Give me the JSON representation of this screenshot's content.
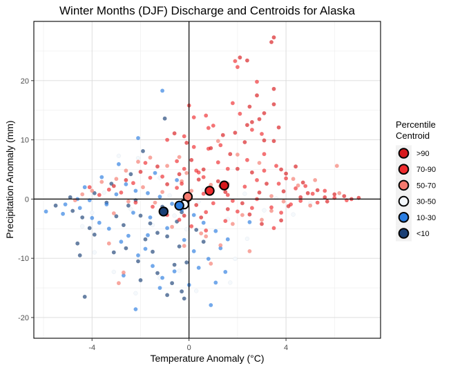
{
  "chart_data": {
    "type": "scatter",
    "title": "Winter Months (DJF) Discharge and Centroids for Alaska",
    "xlabel": "Temperature Anomaly (°C)",
    "ylabel": "Precipitation Anomaly (mm)",
    "xlim": [
      -6.4,
      7.9
    ],
    "ylim": [
      -23.5,
      30
    ],
    "xticks": [
      -4,
      0,
      4
    ],
    "xtick_labels": [
      "-4",
      "0",
      "4"
    ],
    "yticks": [
      -20,
      -10,
      0,
      10,
      20
    ],
    "ytick_labels": [
      "-20",
      "-10",
      "0",
      "10",
      "20"
    ],
    "grid": true,
    "reference_lines": {
      "x": 0,
      "y": 0
    },
    "legend": {
      "title_lines": [
        "Percentile",
        "Centroid"
      ],
      "placement": "right",
      "entries": [
        {
          "label": ">90",
          "color": "#d7191c"
        },
        {
          "label": "70-90",
          "color": "#ef2b2d"
        },
        {
          "label": "50-70",
          "color": "#f4796e"
        },
        {
          "label": "30-50",
          "color": "#f4f8fc"
        },
        {
          "label": "10-30",
          "color": "#2a7de1"
        },
        {
          "label": "<10",
          "color": "#1a3f75"
        }
      ]
    },
    "centroids": [
      {
        "series": ">90",
        "x": 1.45,
        "y": 2.3
      },
      {
        "series": "70-90",
        "x": 0.85,
        "y": 1.4
      },
      {
        "series": "50-70",
        "x": -0.05,
        "y": 0.4
      },
      {
        "series": "30-50",
        "x": -0.2,
        "y": -0.9
      },
      {
        "series": "10-30",
        "x": -0.4,
        "y": -1.1
      },
      {
        "series": "<10",
        "x": -1.05,
        "y": -2.1
      }
    ],
    "series": [
      {
        "name": ">90",
        "points": [
          [
            3.4,
            26.5
          ],
          [
            3.5,
            27.3
          ],
          [
            2.1,
            23.9
          ],
          [
            2.4,
            23.4
          ],
          [
            2.8,
            17.5
          ],
          [
            3.5,
            18.6
          ],
          [
            3.5,
            16.0
          ],
          [
            2.5,
            15.6
          ],
          [
            3.1,
            14.5
          ],
          [
            2.9,
            13.5
          ],
          [
            2.6,
            13.0
          ],
          [
            3.7,
            12.1
          ],
          [
            2.4,
            12.5
          ],
          [
            3.5,
            9.8
          ],
          [
            1.9,
            11.2
          ],
          [
            1.4,
            10.8
          ],
          [
            2.3,
            9.6
          ],
          [
            3.1,
            9.9
          ],
          [
            4.4,
            5.5
          ],
          [
            3.8,
            5.0
          ],
          [
            4.7,
            2.8
          ],
          [
            5.3,
            1.5
          ],
          [
            6.0,
            0.8
          ],
          [
            6.4,
            0.5
          ],
          [
            7.0,
            0.2
          ],
          [
            5.7,
            -0.4
          ],
          [
            3.2,
            2.6
          ],
          [
            2.5,
            -2.6
          ],
          [
            3.0,
            -4.2
          ],
          [
            3.8,
            -3.6
          ],
          [
            4.1,
            -1.2
          ],
          [
            4.6,
            0.3
          ],
          [
            1.7,
            7.6
          ],
          [
            2.0,
            5.1
          ],
          [
            0.9,
            8.6
          ],
          [
            0.6,
            5.0
          ],
          [
            1.2,
            3.0
          ],
          [
            0.4,
            3.3
          ],
          [
            -0.1,
            9.5
          ],
          [
            0.1,
            6.6
          ],
          [
            -0.6,
            11.1
          ],
          [
            -0.4,
            4.2
          ],
          [
            -0.9,
            2.5
          ],
          [
            -1.3,
            5.5
          ],
          [
            -2.0,
            4.6
          ],
          [
            -2.6,
            3.2
          ],
          [
            -3.1,
            2.2
          ],
          [
            -0.2,
            -2.8
          ],
          [
            0.5,
            -3.1
          ],
          [
            1.6,
            -1.7
          ],
          [
            2.9,
            1.1
          ],
          [
            3.9,
            1.3
          ],
          [
            4.9,
            1.0
          ],
          [
            5.6,
            0.3
          ],
          [
            6.7,
            0.0
          ],
          [
            1.5,
            1.2
          ],
          [
            0.3,
            -1.0
          ],
          [
            2.2,
            -0.7
          ],
          [
            2.6,
            4.5
          ],
          [
            4.0,
            4.3
          ]
        ]
      },
      {
        "name": "70-90",
        "points": [
          [
            1.9,
            23.3
          ],
          [
            2.0,
            22.3
          ],
          [
            2.8,
            19.8
          ],
          [
            1.8,
            16.2
          ],
          [
            0.7,
            14.1
          ],
          [
            0.8,
            12.0
          ],
          [
            0.2,
            13.8
          ],
          [
            1.0,
            12.4
          ],
          [
            2.1,
            14.4
          ],
          [
            2.6,
            11.7
          ],
          [
            3.0,
            11.0
          ],
          [
            1.3,
            9.1
          ],
          [
            0.8,
            8.5
          ],
          [
            0.2,
            8.8
          ],
          [
            -0.2,
            10.6
          ],
          [
            0.0,
            15.8
          ],
          [
            -0.9,
            10.0
          ],
          [
            -0.5,
            6.4
          ],
          [
            -0.2,
            5.1
          ],
          [
            0.3,
            4.8
          ],
          [
            0.6,
            3.7
          ],
          [
            -1.1,
            3.8
          ],
          [
            -1.6,
            3.6
          ],
          [
            -1.8,
            6.1
          ],
          [
            -2.3,
            2.7
          ],
          [
            -2.8,
            1.1
          ],
          [
            -3.3,
            1.6
          ],
          [
            -3.7,
            0.7
          ],
          [
            -4.1,
            2.0
          ],
          [
            1.2,
            6.2
          ],
          [
            1.6,
            5.1
          ],
          [
            2.4,
            6.6
          ],
          [
            2.8,
            3.2
          ],
          [
            3.6,
            5.6
          ],
          [
            3.1,
            4.8
          ],
          [
            4.0,
            3.5
          ],
          [
            4.4,
            1.8
          ],
          [
            4.8,
            2.2
          ],
          [
            5.1,
            0.9
          ],
          [
            5.6,
            1.4
          ],
          [
            6.0,
            0.2
          ],
          [
            6.5,
            -0.2
          ],
          [
            5.3,
            -0.6
          ],
          [
            4.2,
            -0.9
          ],
          [
            3.8,
            -2.3
          ],
          [
            3.4,
            -1.4
          ],
          [
            2.6,
            -1.5
          ],
          [
            2.0,
            -2.1
          ],
          [
            1.5,
            -3.7
          ],
          [
            0.7,
            -2.2
          ],
          [
            0.1,
            -4.6
          ],
          [
            -0.4,
            -3.5
          ],
          [
            -0.9,
            -2.7
          ],
          [
            -1.5,
            -1.3
          ],
          [
            -2.2,
            -0.6
          ],
          [
            1.6,
            0.7
          ],
          [
            2.3,
            2.1
          ],
          [
            0.6,
            0.9
          ],
          [
            -0.5,
            1.9
          ],
          [
            1.0,
            -0.7
          ],
          [
            3.7,
            2.6
          ],
          [
            3.5,
            -4.9
          ],
          [
            0.7,
            -5.3
          ],
          [
            -0.3,
            2.6
          ],
          [
            4.6,
            -0.3
          ],
          [
            2.8,
            0.0
          ],
          [
            1.8,
            -0.3
          ],
          [
            3.1,
            7.6
          ],
          [
            0.4,
            4.5
          ],
          [
            1.3,
            2.2
          ]
        ]
      },
      {
        "name": "50-70",
        "points": [
          [
            -1.6,
            7.0
          ],
          [
            -2.1,
            6.3
          ],
          [
            -0.9,
            5.6
          ],
          [
            -0.1,
            4.4
          ],
          [
            -2.6,
            4.8
          ],
          [
            -3.0,
            3.4
          ],
          [
            -3.6,
            2.9
          ],
          [
            -4.0,
            1.4
          ],
          [
            -4.4,
            0.8
          ],
          [
            -4.7,
            -0.2
          ],
          [
            -3.3,
            -7.5
          ],
          [
            -2.7,
            -12.4
          ],
          [
            -2.9,
            -14.2
          ],
          [
            -0.7,
            -4.7
          ],
          [
            0.7,
            -6.3
          ],
          [
            1.3,
            -7.8
          ],
          [
            2.5,
            -8.8
          ],
          [
            0.9,
            -10.9
          ],
          [
            0.5,
            -5.8
          ],
          [
            1.8,
            -4.2
          ],
          [
            2.2,
            -2.7
          ],
          [
            3.4,
            -2.0
          ],
          [
            3.9,
            -0.4
          ],
          [
            4.5,
            2.3
          ],
          [
            5.2,
            3.2
          ],
          [
            6.1,
            5.6
          ],
          [
            5.0,
            -1.1
          ],
          [
            6.2,
            1.0
          ],
          [
            4.3,
            3.4
          ],
          [
            2.9,
            6.1
          ],
          [
            1.6,
            2.6
          ],
          [
            0.9,
            2.4
          ],
          [
            -0.3,
            3.0
          ],
          [
            -1.1,
            1.2
          ],
          [
            -1.9,
            2.0
          ],
          [
            -2.5,
            -0.4
          ],
          [
            -3.1,
            -2.4
          ],
          [
            -0.2,
            -7.9
          ],
          [
            -0.4,
            7.1
          ],
          [
            1.2,
            9.8
          ],
          [
            2.0,
            7.5
          ],
          [
            3.4,
            0.5
          ],
          [
            0.1,
            1.4
          ],
          [
            -1.4,
            -0.6
          ],
          [
            3.0,
            -3.5
          ]
        ]
      },
      {
        "name": "30-50",
        "points": [
          [
            -2.1,
            6.9
          ],
          [
            -2.9,
            7.3
          ],
          [
            -3.5,
            1.1
          ],
          [
            -4.0,
            -2.3
          ],
          [
            -4.4,
            -4.6
          ],
          [
            -3.9,
            -9.0
          ],
          [
            -2.2,
            -15.9
          ],
          [
            -3.1,
            -12.3
          ],
          [
            -1.2,
            -13.3
          ],
          [
            -0.4,
            -12.1
          ],
          [
            1.7,
            -14.1
          ],
          [
            0.3,
            -15.5
          ],
          [
            1.9,
            -10.1
          ],
          [
            2.4,
            -6.7
          ],
          [
            1.6,
            -3.4
          ],
          [
            -0.6,
            -2.8
          ],
          [
            -0.8,
            0.6
          ],
          [
            0.4,
            -0.4
          ],
          [
            2.3,
            0.9
          ],
          [
            3.1,
            -1.9
          ],
          [
            4.3,
            -2.6
          ],
          [
            5.0,
            -0.7
          ],
          [
            3.6,
            0.1
          ],
          [
            -1.5,
            -4.4
          ],
          [
            -2.4,
            -1.7
          ],
          [
            -1.2,
            3.6
          ],
          [
            0.6,
            1.5
          ],
          [
            -0.1,
            -5.1
          ]
        ]
      },
      {
        "name": "10-30",
        "points": [
          [
            -1.1,
            18.3
          ],
          [
            -2.1,
            10.3
          ],
          [
            -2.9,
            5.9
          ],
          [
            -3.6,
            3.7
          ],
          [
            -4.3,
            2.0
          ],
          [
            -4.6,
            0.0
          ],
          [
            -5.1,
            -0.9
          ],
          [
            -5.9,
            -2.1
          ],
          [
            -5.2,
            -2.5
          ],
          [
            -4.5,
            -1.5
          ],
          [
            -4.0,
            -3.2
          ],
          [
            -3.7,
            -4.0
          ],
          [
            -3.3,
            -5.0
          ],
          [
            -2.8,
            -7.2
          ],
          [
            -2.5,
            -6.2
          ],
          [
            -2.1,
            -9.5
          ],
          [
            -1.8,
            -8.4
          ],
          [
            -1.5,
            -11.3
          ],
          [
            -1.1,
            -13.3
          ],
          [
            -1.2,
            -15.0
          ],
          [
            -0.6,
            -12.2
          ],
          [
            0.0,
            -14.5
          ],
          [
            0.4,
            -11.6
          ],
          [
            0.8,
            -10.1
          ],
          [
            1.1,
            -14.1
          ],
          [
            1.5,
            -12.3
          ],
          [
            1.6,
            -6.8
          ],
          [
            1.1,
            -5.4
          ],
          [
            0.6,
            -4.0
          ],
          [
            0.2,
            -2.7
          ],
          [
            -0.3,
            -1.8
          ],
          [
            -0.7,
            -0.8
          ],
          [
            -1.2,
            0.4
          ],
          [
            -1.7,
            1.0
          ],
          [
            -2.2,
            1.4
          ],
          [
            -2.6,
            2.5
          ],
          [
            -3.0,
            0.8
          ],
          [
            -3.4,
            -0.9
          ],
          [
            -4.1,
            -0.2
          ],
          [
            -0.2,
            -6.9
          ],
          [
            -0.9,
            -4.9
          ],
          [
            -1.6,
            -3.1
          ],
          [
            -2.3,
            -2.3
          ],
          [
            -0.5,
            3.2
          ],
          [
            -1.4,
            4.4
          ],
          [
            -2.2,
            -18.6
          ],
          [
            -2.7,
            -12.9
          ],
          [
            0.9,
            -17.9
          ],
          [
            0.2,
            -8.8
          ],
          [
            1.3,
            -8.3
          ],
          [
            2.5,
            -3.9
          ],
          [
            -1.7,
            -6.1
          ]
        ]
      },
      {
        "name": "<10",
        "points": [
          [
            -1.0,
            13.6
          ],
          [
            -1.9,
            8.1
          ],
          [
            -2.4,
            4.2
          ],
          [
            -3.2,
            2.6
          ],
          [
            -3.9,
            1.0
          ],
          [
            -4.9,
            0.3
          ],
          [
            -5.5,
            -1.1
          ],
          [
            -4.8,
            -2.0
          ],
          [
            -4.4,
            -3.1
          ],
          [
            -3.9,
            -6.0
          ],
          [
            -4.5,
            -9.5
          ],
          [
            -4.6,
            -7.5
          ],
          [
            -4.3,
            -16.5
          ],
          [
            -2.1,
            -10.5
          ],
          [
            -2.0,
            -13.7
          ],
          [
            -1.3,
            -12.5
          ],
          [
            -0.9,
            -16.2
          ],
          [
            -0.7,
            -14.2
          ],
          [
            -0.3,
            -15.6
          ],
          [
            -0.2,
            -16.8
          ],
          [
            -0.1,
            -10.7
          ],
          [
            -0.4,
            -8.0
          ],
          [
            -0.9,
            -6.3
          ],
          [
            -1.3,
            -5.7
          ],
          [
            -1.6,
            -4.1
          ],
          [
            -2.0,
            -2.8
          ],
          [
            -2.5,
            -1.1
          ],
          [
            -3.0,
            -2.9
          ],
          [
            -3.4,
            -0.6
          ],
          [
            -0.5,
            -3.8
          ],
          [
            0.3,
            -5.2
          ],
          [
            0.6,
            -7.2
          ],
          [
            -0.3,
            -2.2
          ],
          [
            -1.1,
            -1.3
          ],
          [
            -1.8,
            -6.8
          ],
          [
            -2.6,
            -8.3
          ],
          [
            -3.1,
            -9.0
          ],
          [
            -2.7,
            -4.4
          ],
          [
            -2.2,
            -0.2
          ],
          [
            -1.5,
            -8.9
          ],
          [
            -0.6,
            -11.1
          ],
          [
            -4.1,
            -4.9
          ]
        ]
      }
    ]
  }
}
